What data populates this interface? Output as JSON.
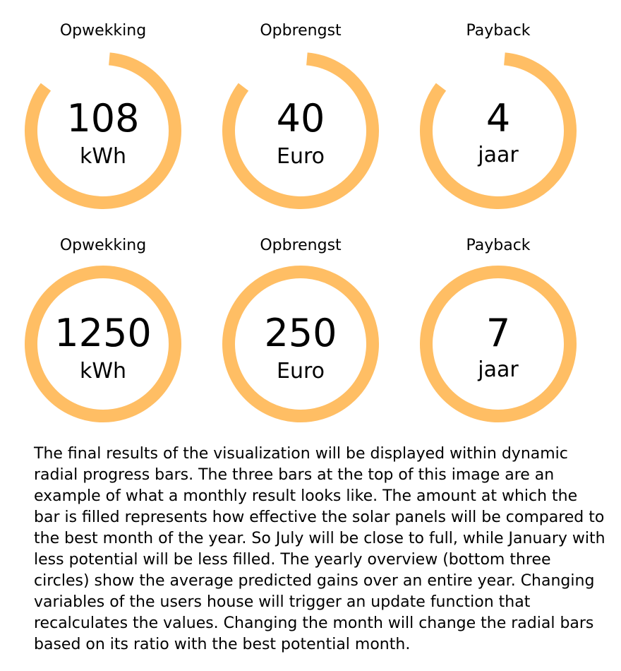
{
  "colors": {
    "ring": "#FFBE64",
    "text": "#000000",
    "background": "#FFFFFF"
  },
  "monthly": [
    {
      "title": "Opwekking",
      "value": "108",
      "unit": "kWh",
      "fill_fraction": 0.84
    },
    {
      "title": "Opbrengst",
      "value": "40",
      "unit": "Euro",
      "fill_fraction": 0.84
    },
    {
      "title": "Payback",
      "value": "4",
      "unit": "jaar",
      "fill_fraction": 0.84
    }
  ],
  "yearly": [
    {
      "title": "Opwekking",
      "value": "1250",
      "unit": "kWh",
      "fill_fraction": 1.0
    },
    {
      "title": "Opbrengst",
      "value": "250",
      "unit": "Euro",
      "fill_fraction": 1.0
    },
    {
      "title": "Payback",
      "value": "7",
      "unit": "jaar",
      "fill_fraction": 1.0
    }
  ],
  "description": "The final results of the visualization will be displayed within dynamic radial progress bars. The three bars at the top of this image are an example of what a monthly result looks like. The amount at which the bar is filled represents how effective the solar panels will be compared to the best month of the year. So July will be close to full, while January with less potential will be less filled. The yearly overview (bottom three circles) show the average predicted gains over an entire year. Changing variables of the users house will trigger an update function that recalculates the values. Changing the month will change the radial bars based on its ratio with the best potential month."
}
